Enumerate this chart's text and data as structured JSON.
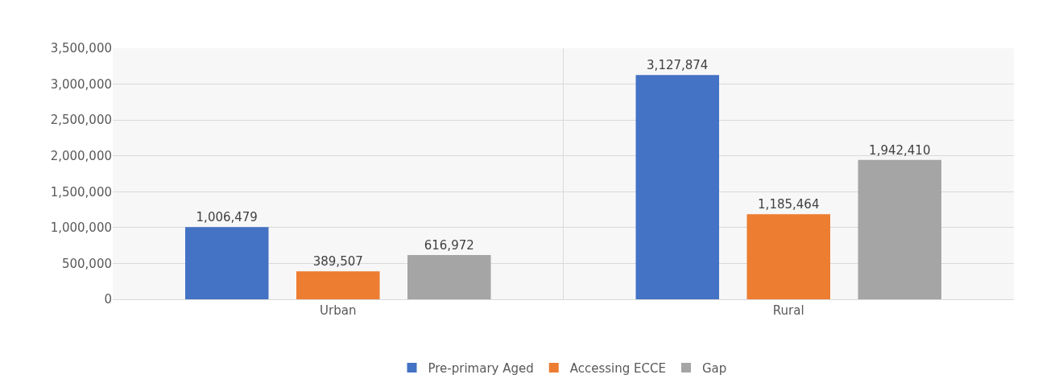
{
  "chart_data": {
    "type": "bar",
    "categories": [
      "Urban",
      "Rural"
    ],
    "series": [
      {
        "name": "Pre-primary Aged",
        "color": "#4472c4",
        "values": [
          1006479,
          3127874
        ],
        "value_labels": [
          "1,006,479",
          "3,127,874"
        ]
      },
      {
        "name": "Accessing ECCE",
        "color": "#ed7d31",
        "values": [
          389507,
          1185464
        ],
        "value_labels": [
          "389,507",
          "1,185,464"
        ]
      },
      {
        "name": "Gap",
        "color": "#a5a5a5",
        "values": [
          616972,
          1942410
        ],
        "value_labels": [
          "616,972",
          "1,942,410"
        ]
      }
    ],
    "ylim": [
      0,
      3500000
    ],
    "yticks": [
      {
        "value": 0,
        "label": "0"
      },
      {
        "value": 500000,
        "label": "500,000"
      },
      {
        "value": 1000000,
        "label": "1,000,000"
      },
      {
        "value": 1500000,
        "label": "1,500,000"
      },
      {
        "value": 2000000,
        "label": "2,000,000"
      },
      {
        "value": 2500000,
        "label": "2,500,000"
      },
      {
        "value": 3000000,
        "label": "3,000,000"
      },
      {
        "value": 3500000,
        "label": "3,500,000"
      }
    ],
    "grid": true,
    "legend": "bottom"
  }
}
